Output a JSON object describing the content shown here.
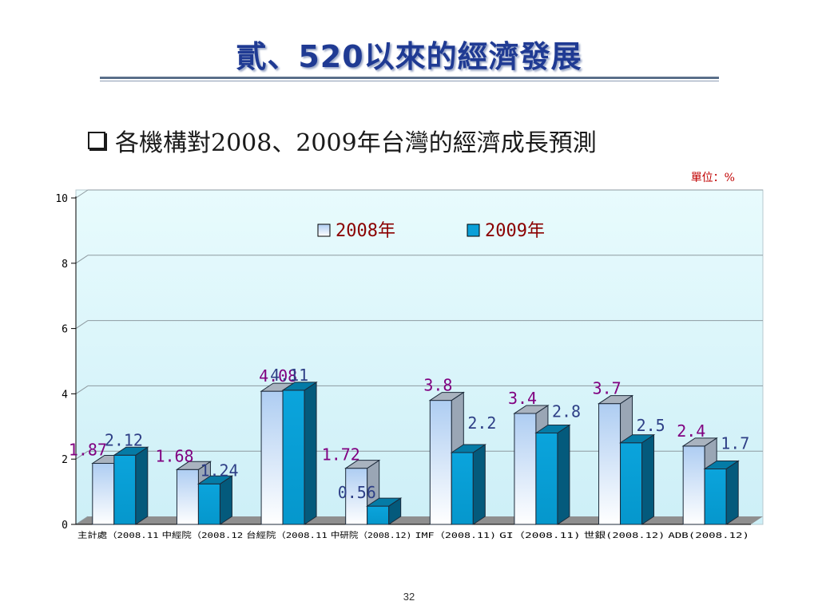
{
  "slide": {
    "title": "貳、520以來的經濟發展",
    "subtitle": "各機構對2008、2009年台灣的經濟成長預測",
    "unit": "單位：%",
    "page_number": "32"
  },
  "colors": {
    "title": "#1f3a93",
    "series_2008": "#d6e8fb",
    "series_2009": "#0aa0d8",
    "plot_bg": "#d8f6fb",
    "label_2008": "#800080",
    "label_2009": "#2e3f86"
  },
  "chart_data": {
    "type": "bar",
    "categories": [
      "主計處（2008.11",
      "中經院（2008.12",
      "台經院（2008.11",
      "中研院（2008.12)",
      "IMF（2008.11)",
      "GI（2008.11)",
      "世銀(2008.12)",
      "ADB(2008.12)"
    ],
    "series": [
      {
        "name": "2008年",
        "values": [
          1.87,
          1.68,
          4.08,
          1.72,
          3.8,
          3.4,
          3.7,
          2.4
        ],
        "labels": [
          "1.87",
          "1.68",
          "4.08",
          "1.72",
          "3.8",
          "3.4",
          "3.7",
          "2.4"
        ]
      },
      {
        "name": "2009年",
        "values": [
          2.12,
          1.24,
          4.11,
          0.56,
          2.2,
          2.8,
          2.5,
          1.7
        ],
        "labels": [
          "2.12",
          "1.24",
          "4.11",
          "0.56",
          "2.2",
          "2.8",
          "2.5",
          "1.7"
        ]
      }
    ],
    "ylim": [
      0,
      10
    ],
    "yticks": [
      "0",
      "2",
      "4",
      "6",
      "8",
      "10"
    ],
    "grid": true,
    "legend_position": "top-center",
    "style": "3d-clustered-column"
  }
}
